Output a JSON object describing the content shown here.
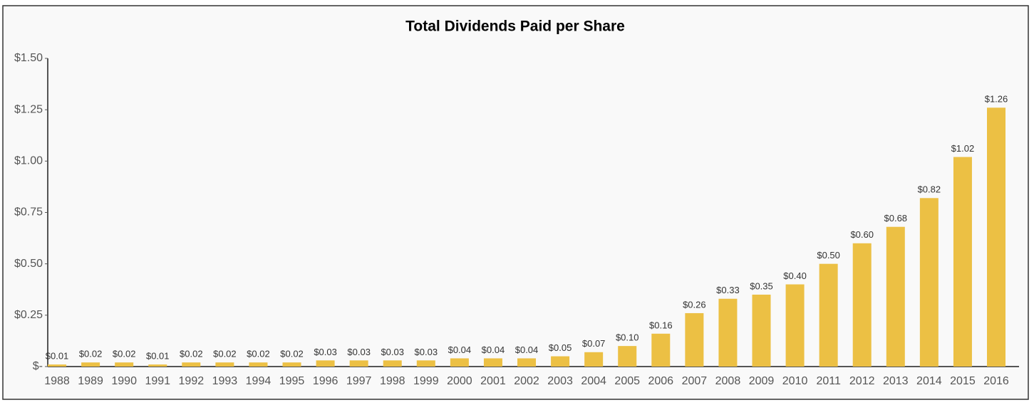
{
  "chart_data": {
    "type": "bar",
    "title": "Total Dividends Paid per Share",
    "categories": [
      "1988",
      "1989",
      "1990",
      "1991",
      "1992",
      "1993",
      "1994",
      "1995",
      "1996",
      "1997",
      "1998",
      "1999",
      "2000",
      "2001",
      "2002",
      "2003",
      "2004",
      "2005",
      "2006",
      "2007",
      "2008",
      "2009",
      "2010",
      "2011",
      "2012",
      "2013",
      "2014",
      "2015",
      "2016"
    ],
    "values": [
      0.01,
      0.02,
      0.02,
      0.01,
      0.02,
      0.02,
      0.02,
      0.02,
      0.03,
      0.03,
      0.03,
      0.03,
      0.04,
      0.04,
      0.04,
      0.05,
      0.07,
      0.1,
      0.16,
      0.26,
      0.33,
      0.35,
      0.4,
      0.5,
      0.6,
      0.68,
      0.82,
      1.02,
      1.26
    ],
    "value_labels": [
      "$0.01",
      "$0.02",
      "$0.02",
      "$0.01",
      "$0.02",
      "$0.02",
      "$0.02",
      "$0.02",
      "$0.03",
      "$0.03",
      "$0.03",
      "$0.03",
      "$0.04",
      "$0.04",
      "$0.04",
      "$0.05",
      "$0.07",
      "$0.10",
      "$0.16",
      "$0.26",
      "$0.33",
      "$0.35",
      "$0.40",
      "$0.50",
      "$0.60",
      "$0.68",
      "$0.82",
      "$1.02",
      "$1.26"
    ],
    "color": "#ecc044",
    "ylim": [
      0,
      1.5
    ],
    "yticks": [
      {
        "value": 0,
        "label": "$-"
      },
      {
        "value": 0.25,
        "label": "$0.25"
      },
      {
        "value": 0.5,
        "label": "$0.50"
      },
      {
        "value": 0.75,
        "label": "$0.75"
      },
      {
        "value": 1,
        "label": "$1.00"
      },
      {
        "value": 1.25,
        "label": "$1.25"
      },
      {
        "value": 1.5,
        "label": "$1.50"
      }
    ],
    "grid": false
  }
}
